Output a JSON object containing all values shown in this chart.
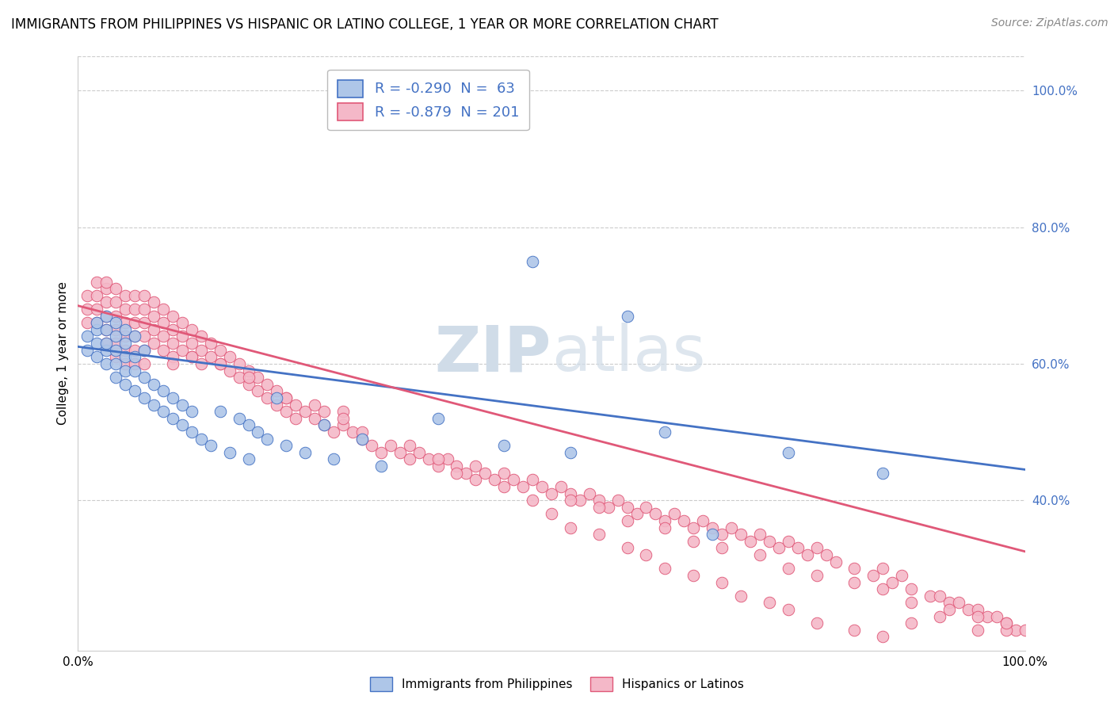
{
  "title": "IMMIGRANTS FROM PHILIPPINES VS HISPANIC OR LATINO COLLEGE, 1 YEAR OR MORE CORRELATION CHART",
  "source": "Source: ZipAtlas.com",
  "ylabel": "College, 1 year or more",
  "xlim": [
    0.0,
    1.0
  ],
  "ylim": [
    0.18,
    1.05
  ],
  "right_yticks": [
    0.4,
    0.6,
    0.8,
    1.0
  ],
  "right_yticklabels": [
    "40.0%",
    "60.0%",
    "80.0%",
    "100.0%"
  ],
  "xticks": [
    0.0,
    1.0
  ],
  "xticklabels": [
    "0.0%",
    "100.0%"
  ],
  "blue_R": -0.29,
  "blue_N": 63,
  "pink_R": -0.879,
  "pink_N": 201,
  "blue_color": "#aec6e8",
  "pink_color": "#f4b8c8",
  "blue_line_color": "#4472c4",
  "pink_line_color": "#e05878",
  "legend_label_blue": "Immigrants from Philippines",
  "legend_label_pink": "Hispanics or Latinos",
  "watermark_color": "#d0dce8",
  "title_fontsize": 12,
  "source_fontsize": 10,
  "label_fontsize": 11,
  "tick_fontsize": 11,
  "legend_fontsize": 13,
  "grid_color": "#cccccc",
  "background_color": "#ffffff",
  "blue_scatter_x": [
    0.01,
    0.01,
    0.02,
    0.02,
    0.02,
    0.02,
    0.03,
    0.03,
    0.03,
    0.03,
    0.03,
    0.04,
    0.04,
    0.04,
    0.04,
    0.04,
    0.05,
    0.05,
    0.05,
    0.05,
    0.05,
    0.06,
    0.06,
    0.06,
    0.06,
    0.07,
    0.07,
    0.07,
    0.08,
    0.08,
    0.09,
    0.09,
    0.1,
    0.1,
    0.11,
    0.11,
    0.12,
    0.12,
    0.13,
    0.14,
    0.15,
    0.16,
    0.17,
    0.18,
    0.18,
    0.19,
    0.2,
    0.21,
    0.22,
    0.24,
    0.26,
    0.27,
    0.3,
    0.32,
    0.38,
    0.45,
    0.48,
    0.52,
    0.58,
    0.62,
    0.67,
    0.75,
    0.85
  ],
  "blue_scatter_y": [
    0.62,
    0.64,
    0.61,
    0.63,
    0.65,
    0.66,
    0.6,
    0.62,
    0.63,
    0.65,
    0.67,
    0.58,
    0.6,
    0.62,
    0.64,
    0.66,
    0.57,
    0.59,
    0.61,
    0.63,
    0.65,
    0.56,
    0.59,
    0.61,
    0.64,
    0.55,
    0.58,
    0.62,
    0.54,
    0.57,
    0.53,
    0.56,
    0.52,
    0.55,
    0.51,
    0.54,
    0.5,
    0.53,
    0.49,
    0.48,
    0.53,
    0.47,
    0.52,
    0.46,
    0.51,
    0.5,
    0.49,
    0.55,
    0.48,
    0.47,
    0.51,
    0.46,
    0.49,
    0.45,
    0.52,
    0.48,
    0.75,
    0.47,
    0.67,
    0.5,
    0.35,
    0.47,
    0.44
  ],
  "pink_scatter_x": [
    0.01,
    0.01,
    0.01,
    0.02,
    0.02,
    0.02,
    0.02,
    0.03,
    0.03,
    0.03,
    0.03,
    0.03,
    0.03,
    0.04,
    0.04,
    0.04,
    0.04,
    0.04,
    0.04,
    0.05,
    0.05,
    0.05,
    0.05,
    0.05,
    0.05,
    0.06,
    0.06,
    0.06,
    0.06,
    0.06,
    0.06,
    0.07,
    0.07,
    0.07,
    0.07,
    0.07,
    0.07,
    0.08,
    0.08,
    0.08,
    0.08,
    0.09,
    0.09,
    0.09,
    0.09,
    0.1,
    0.1,
    0.1,
    0.1,
    0.11,
    0.11,
    0.11,
    0.12,
    0.12,
    0.12,
    0.13,
    0.13,
    0.13,
    0.14,
    0.14,
    0.15,
    0.15,
    0.16,
    0.16,
    0.17,
    0.17,
    0.18,
    0.18,
    0.19,
    0.19,
    0.2,
    0.2,
    0.21,
    0.21,
    0.22,
    0.22,
    0.23,
    0.23,
    0.24,
    0.25,
    0.26,
    0.26,
    0.27,
    0.28,
    0.28,
    0.29,
    0.3,
    0.31,
    0.32,
    0.33,
    0.34,
    0.35,
    0.36,
    0.37,
    0.38,
    0.39,
    0.4,
    0.41,
    0.42,
    0.43,
    0.44,
    0.45,
    0.46,
    0.47,
    0.48,
    0.49,
    0.5,
    0.51,
    0.52,
    0.53,
    0.54,
    0.55,
    0.56,
    0.57,
    0.58,
    0.59,
    0.6,
    0.61,
    0.62,
    0.63,
    0.64,
    0.65,
    0.66,
    0.67,
    0.68,
    0.69,
    0.7,
    0.71,
    0.72,
    0.73,
    0.74,
    0.75,
    0.76,
    0.77,
    0.78,
    0.79,
    0.8,
    0.82,
    0.84,
    0.85,
    0.86,
    0.87,
    0.88,
    0.9,
    0.91,
    0.92,
    0.93,
    0.94,
    0.95,
    0.96,
    0.97,
    0.98,
    0.99,
    1.0,
    0.1,
    0.12,
    0.15,
    0.18,
    0.22,
    0.25,
    0.28,
    0.3,
    0.35,
    0.38,
    0.4,
    0.42,
    0.45,
    0.48,
    0.5,
    0.52,
    0.55,
    0.58,
    0.6,
    0.62,
    0.65,
    0.68,
    0.7,
    0.73,
    0.75,
    0.78,
    0.82,
    0.85,
    0.88,
    0.91,
    0.95,
    0.98,
    0.52,
    0.55,
    0.58,
    0.62,
    0.65,
    0.68,
    0.72,
    0.75,
    0.78,
    0.82,
    0.85,
    0.88,
    0.92,
    0.95,
    0.98
  ],
  "pink_scatter_y": [
    0.7,
    0.68,
    0.66,
    0.72,
    0.7,
    0.68,
    0.66,
    0.71,
    0.69,
    0.67,
    0.65,
    0.63,
    0.72,
    0.71,
    0.69,
    0.67,
    0.65,
    0.63,
    0.61,
    0.7,
    0.68,
    0.66,
    0.64,
    0.62,
    0.6,
    0.7,
    0.68,
    0.66,
    0.64,
    0.62,
    0.6,
    0.7,
    0.68,
    0.66,
    0.64,
    0.62,
    0.6,
    0.69,
    0.67,
    0.65,
    0.63,
    0.68,
    0.66,
    0.64,
    0.62,
    0.67,
    0.65,
    0.63,
    0.61,
    0.66,
    0.64,
    0.62,
    0.65,
    0.63,
    0.61,
    0.64,
    0.62,
    0.6,
    0.63,
    0.61,
    0.62,
    0.6,
    0.61,
    0.59,
    0.6,
    0.58,
    0.59,
    0.57,
    0.58,
    0.56,
    0.57,
    0.55,
    0.56,
    0.54,
    0.55,
    0.53,
    0.54,
    0.52,
    0.53,
    0.52,
    0.51,
    0.53,
    0.5,
    0.51,
    0.53,
    0.5,
    0.49,
    0.48,
    0.47,
    0.48,
    0.47,
    0.46,
    0.47,
    0.46,
    0.45,
    0.46,
    0.45,
    0.44,
    0.45,
    0.44,
    0.43,
    0.44,
    0.43,
    0.42,
    0.43,
    0.42,
    0.41,
    0.42,
    0.41,
    0.4,
    0.41,
    0.4,
    0.39,
    0.4,
    0.39,
    0.38,
    0.39,
    0.38,
    0.37,
    0.38,
    0.37,
    0.36,
    0.37,
    0.36,
    0.35,
    0.36,
    0.35,
    0.34,
    0.35,
    0.34,
    0.33,
    0.34,
    0.33,
    0.32,
    0.33,
    0.32,
    0.31,
    0.3,
    0.29,
    0.3,
    0.28,
    0.29,
    0.27,
    0.26,
    0.26,
    0.25,
    0.25,
    0.24,
    0.24,
    0.23,
    0.23,
    0.22,
    0.21,
    0.21,
    0.6,
    0.61,
    0.6,
    0.58,
    0.55,
    0.54,
    0.52,
    0.5,
    0.48,
    0.46,
    0.44,
    0.43,
    0.42,
    0.4,
    0.38,
    0.36,
    0.35,
    0.33,
    0.32,
    0.3,
    0.29,
    0.28,
    0.26,
    0.25,
    0.24,
    0.22,
    0.21,
    0.2,
    0.22,
    0.23,
    0.21,
    0.21,
    0.4,
    0.39,
    0.37,
    0.36,
    0.34,
    0.33,
    0.32,
    0.3,
    0.29,
    0.28,
    0.27,
    0.25,
    0.24,
    0.23,
    0.22
  ]
}
